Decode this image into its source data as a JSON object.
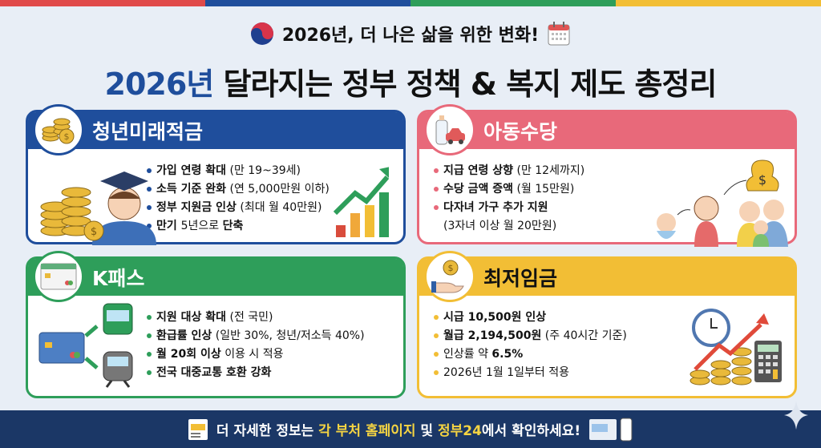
{
  "colors": {
    "red": "#e04a4a",
    "blue": "#1f4e9c",
    "green": "#2e9e5a",
    "yellow": "#f2be35",
    "pink": "#e8697a",
    "navy": "#1b3766"
  },
  "header": {
    "subtitle": "2026년, 더 나은 삶을 위한 변화!",
    "title_year": "2026년",
    "title_rest": " 달라지는 정부 정책 & 복지 제도 총정리",
    "icons": [
      "taegeuk-emblem-icon",
      "calendar-icon"
    ]
  },
  "cards": [
    {
      "id": "youth-savings",
      "title": "청년미래적금",
      "color": "#1f4e9c",
      "icon": "coins-icon",
      "title_color": "#fff",
      "items": [
        [
          {
            "t": "가입 연령 확대",
            "b": true
          },
          {
            "t": " (만 19~39세)",
            "b": false
          }
        ],
        [
          {
            "t": "소득 기준 완화",
            "b": true
          },
          {
            "t": " (연 5,000만원 이하)",
            "b": false
          }
        ],
        [
          {
            "t": "정부 지원금 인상",
            "b": true
          },
          {
            "t": " (최대 월 40만원)",
            "b": false
          }
        ],
        [
          {
            "t": "만기 ",
            "b": true
          },
          {
            "t": "5년으로 ",
            "b": false
          },
          {
            "t": "단축",
            "b": true
          }
        ]
      ]
    },
    {
      "id": "child-allowance",
      "title": "아동수당",
      "color": "#e8697a",
      "icon": "baby-bottle-icon",
      "title_color": "#fff",
      "items": [
        [
          {
            "t": "지급 연령 상향",
            "b": true
          },
          {
            "t": " (만 12세까지)",
            "b": false
          }
        ],
        [
          {
            "t": "수당 금액 증액",
            "b": true
          },
          {
            "t": " (월 15만원)",
            "b": false
          }
        ],
        [
          {
            "t": "다자녀 가구 추가 지원",
            "b": true
          }
        ],
        [
          {
            "t": "(3자녀 이상 월 20만원)",
            "b": false
          }
        ]
      ]
    },
    {
      "id": "k-pass",
      "title": "K패스",
      "color": "#2e9e5a",
      "icon": "transit-card-icon",
      "title_color": "#fff",
      "items": [
        [
          {
            "t": "지원 대상 확대",
            "b": true
          },
          {
            "t": " (전 국민)",
            "b": false
          }
        ],
        [
          {
            "t": "환급률 인상",
            "b": true
          },
          {
            "t": " (일반 30%, 청년/저소득 40%)",
            "b": false
          }
        ],
        [
          {
            "t": "월 20회 이상",
            "b": true
          },
          {
            "t": " 이용 시 적용",
            "b": false
          }
        ],
        [
          {
            "t": "전국 대중교통 호환 강화",
            "b": true
          }
        ]
      ]
    },
    {
      "id": "minimum-wage",
      "title": "최저임금",
      "color": "#f2be35",
      "icon": "hand-coin-icon",
      "title_color": "#111",
      "items": [
        [
          {
            "t": "시급 10,500원 인상",
            "b": true
          }
        ],
        [
          {
            "t": "월급 2,194,500원",
            "b": true
          },
          {
            "t": " (주 40시간 기준)",
            "b": false
          }
        ],
        [
          {
            "t": "인상률 약 ",
            "b": false
          },
          {
            "t": "6.5%",
            "b": true
          }
        ],
        [
          {
            "t": "2026년 1월 1일부터 적용",
            "b": false
          }
        ]
      ]
    }
  ],
  "footer": {
    "pre": "더 자세한 정보는 ",
    "hl1": "각 부처 홈페이지",
    "mid": " 및 ",
    "hl2": "정부24",
    "post": "에서 확인하세요!",
    "icons": [
      "browser-icon",
      "monitor-mobile-icon"
    ]
  }
}
